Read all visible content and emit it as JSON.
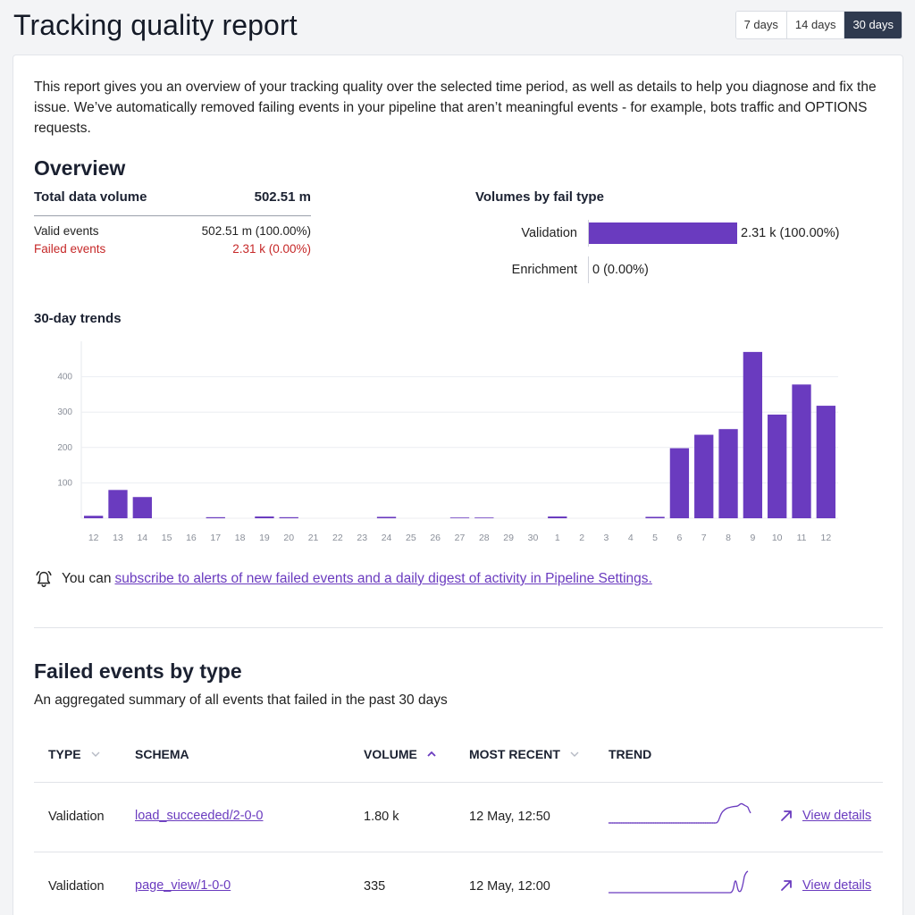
{
  "header": {
    "title": "Tracking quality report",
    "ranges": [
      "7 days",
      "14 days",
      "30 days"
    ],
    "active_range": "30 days"
  },
  "intro": "This report gives you an overview of your tracking quality over the selected time period, as well as details to help you diagnose and fix the issue. We’ve automatically removed failing events in your pipeline that aren’t meaningful events - for example, bots traffic and OPTIONS requests.",
  "overview": {
    "title": "Overview",
    "total_label": "Total data volume",
    "total_value": "502.51 m",
    "valid_label": "Valid events",
    "valid_value": "502.51 m (100.00%)",
    "failed_label": "Failed events",
    "failed_value": "2.31 k (0.00%)",
    "fail_type_title": "Volumes by fail type",
    "fail_types": [
      {
        "label": "Validation",
        "value": "2.31 k (100.00%)",
        "share": 1.0
      },
      {
        "label": "Enrichment",
        "value": "0 (0.00%)",
        "share": 0.0
      }
    ]
  },
  "trends": {
    "title": "30-day trends",
    "chart_data": {
      "type": "bar",
      "categories": [
        "12",
        "13",
        "14",
        "15",
        "16",
        "17",
        "18",
        "19",
        "20",
        "21",
        "22",
        "23",
        "24",
        "25",
        "26",
        "27",
        "28",
        "29",
        "30",
        "1",
        "2",
        "3",
        "4",
        "5",
        "6",
        "7",
        "8",
        "9",
        "10",
        "11",
        "12"
      ],
      "values": [
        7,
        80,
        60,
        0,
        0,
        3,
        0,
        5,
        3,
        0,
        0,
        0,
        4,
        0,
        0,
        2,
        2,
        0,
        0,
        5,
        0,
        0,
        0,
        4,
        198,
        236,
        252,
        470,
        293,
        378,
        318
      ],
      "yticks": [
        100,
        200,
        300,
        400
      ],
      "ylim": [
        0,
        500
      ],
      "color": "#6a3bbf"
    }
  },
  "alert": {
    "prefix": "You can",
    "link": "subscribe to alerts of new failed events and a daily digest of activity in Pipeline Settings."
  },
  "failed": {
    "title": "Failed events by type",
    "subtitle": "An aggregated summary of all events that failed in the past 30 days",
    "columns": {
      "type": "TYPE",
      "schema": "SCHEMA",
      "volume": "VOLUME",
      "recent": "MOST RECENT",
      "trend": "TREND"
    },
    "rows": [
      {
        "type": "Validation",
        "schema": "load_succeeded/2-0-0",
        "volume": "1.80 k",
        "recent": "12 May, 12:50",
        "action": "View details"
      },
      {
        "type": "Validation",
        "schema": "page_view/1-0-0",
        "volume": "335",
        "recent": "12 May, 12:00",
        "action": "View details"
      }
    ]
  },
  "colors": {
    "accent": "#6a3bbf",
    "failed_text": "#c62828",
    "active_range_bg": "#2f3a4f"
  }
}
